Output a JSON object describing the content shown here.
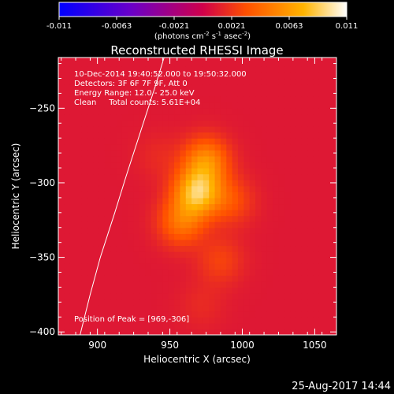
{
  "colorbar": {
    "ticks": [
      "-0.011",
      "-0.0063",
      "-0.0021",
      "0.0021",
      "0.0063",
      "0.011"
    ],
    "unit_parts": [
      "(photons cm",
      "-2",
      " s",
      "-1",
      " asec",
      "-2",
      ")"
    ]
  },
  "plot": {
    "title": "Reconstructed RHESSI Image",
    "info_lines": [
      "10-Dec-2014 19:40:52.000 to 19:50:32.000",
      "Detectors: 3F 6F 7F 9F, Att 0",
      "Energy Range: 12.0 - 25.0 keV",
      "Clean     Total counts: 5.61E+04"
    ],
    "peak_label": "Position of Peak = [969,-306]",
    "footer_date": "25-Aug-2017 14:44"
  },
  "chart_data": {
    "type": "heatmap",
    "title": "Reconstructed RHESSI Image",
    "xlabel": "Heliocentric X (arcsec)",
    "ylabel": "Heliocentric Y (arcsec)",
    "xlim": [
      873,
      1065
    ],
    "ylim": [
      -402,
      -216
    ],
    "x_ticks": [
      900,
      950,
      1000,
      1050
    ],
    "y_ticks": [
      -250,
      -300,
      -350,
      -400
    ],
    "colorbar_range": [
      -0.011,
      0.011
    ],
    "peak": [
      969,
      -306
    ],
    "colormap": [
      "#0000ff",
      "#6a00c8",
      "#d0004a",
      "#ff5000",
      "#ffb400",
      "#ffffff"
    ],
    "limb_curve": [
      [
        888,
        -402
      ],
      [
        895,
        -375
      ],
      [
        902,
        -350
      ],
      [
        912,
        -320
      ],
      [
        920,
        -295
      ],
      [
        930,
        -265
      ],
      [
        940,
        -235
      ],
      [
        946,
        -216
      ]
    ],
    "sources": [
      {
        "x": 969,
        "y": -306,
        "value": 0.011
      },
      {
        "x": 975,
        "y": -285,
        "value": 0.0085
      },
      {
        "x": 958,
        "y": -326,
        "value": 0.0075
      },
      {
        "x": 992,
        "y": -312,
        "value": 0.006
      },
      {
        "x": 985,
        "y": -352,
        "value": 0.0055
      },
      {
        "x": 972,
        "y": -382,
        "value": 0.0045
      },
      {
        "x": 942,
        "y": -282,
        "value": 0.0045
      }
    ],
    "background_value": 0.0038
  }
}
